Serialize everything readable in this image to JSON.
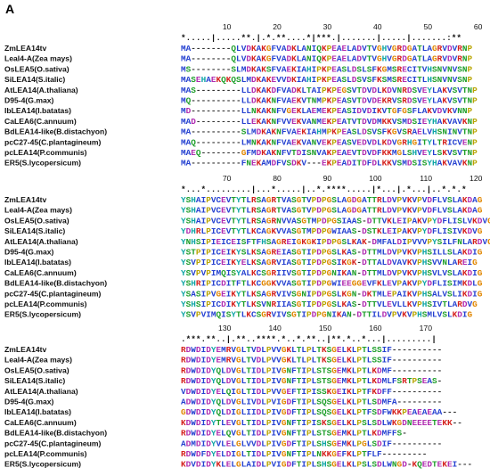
{
  "panel_label": "A",
  "blocks": [
    {
      "ruler": [
        10,
        20,
        30,
        40,
        50,
        60
      ],
      "conservation": "*.....|.....**.|.*.**....*|***.|.......|.....|.......:**",
      "rows": [
        {
          "name": "ZmLEA14tv",
          "seq": "MA--------QLVDKAKGFVADKLANIQKPEAELADVTVGHVGRDGATLAGRVDVRNP"
        },
        {
          "name": "Leal4-A(Zea mays)",
          "seq": "MA--------QLVDKAKGFVADKLANIQKPEAELADVTVGHVGRDGATLAGRVDVRNP"
        },
        {
          "name": "OsLEA5(O.sativa)",
          "seq": "MS--------SLMDKAKSFVAEKIAHIPKPEASLDSLSFKGMSRECITVHSNVNVSNP"
        },
        {
          "name": "SiLEA14(S.italic)",
          "seq": "MASEHAEKQKQSLMDKAKEVVDKIAHIPKPEASLDSVSFKSMSRECITLHSNVNVSNP"
        },
        {
          "name": "AtLEA14(A.thaliana)",
          "seq": "MAS---------LLDKAKDFVADKLTAIPKPEGSVTDVDLKDVNRDSVEYLAKVSVTNP"
        },
        {
          "name": "D95-4(G.max)",
          "seq": "MQ----------LLDKAKNFVAEKVTNMPKPEASVTDVDEKRVSRDSVEYLAKVSVTNP"
        },
        {
          "name": "IbLEA14(I.batatas)",
          "seq": "MD----------LLNKAKNFVGEKLAEMEKPEASIDVDIKVTGFGSFLAKVDVKVNNP"
        },
        {
          "name": "CaLEA6(C.annuum)",
          "seq": "MAD---------LLEKAKNFVVEKVANMEKPEATVTDVDMKKVSMDSIEYHAKVAVKNP"
        },
        {
          "name": "BdLEA14-like(B.distachyon)",
          "seq": "MA----------SLMDKAKNFVAEKIAHMPKPEASLDSVSFKGVSRAELVHSNINVTNP"
        },
        {
          "name": "pcC27-45(C.plantagineum)",
          "seq": "MAQ---------LMNKAKNFVAEKVANVEKPEASVEDVDLKDVGRHGITYLTRICVENP"
        },
        {
          "name": "pcLEA14(P.communis)",
          "seq": "MAEQ--------GFMDKAKNFVTDISNVAKPEAEVTDVDFKKMGLSHVEYLSKVSVTNP"
        },
        {
          "name": "ER5(S.lycopersicum)",
          "seq": "MA----------FNEKAMDFVSDKV---EKPEADITDFDLKKVSMDSISYHAKVAVKNP"
        }
      ]
    },
    {
      "ruler": [
        70,
        80,
        90,
        100,
        110,
        120
      ],
      "conservation": "*...*.........|...*.....|..*.****.....|*...|.*...|..*.*.*",
      "rows": [
        {
          "name": "ZmLEA14tv",
          "seq": "YSHAIPVCEVTYTLRSAGRTVASGTVPDPGSLAGDGATTRLDVPVKVPVDFLVSLAKDAG"
        },
        {
          "name": "Leal4-A(Zea mays)",
          "seq": "YSHAIPVCEVTYTLRSAGRTVASGTVPDPGSLAGDGATTRLDVPVKVPVDFLVSLAKDAG"
        },
        {
          "name": "OsLEA5(O.sativa)",
          "seq": "YSHAIPVCEVTYTLRSAGRNVVASGTMPDPGSIAAS-DTTVKLEIPAKVPYDFLISLVKDVG"
        },
        {
          "name": "SiLEA14(S.italic)",
          "seq": "YDHRLPICEVTYTLKCAGKVVASGTMPDPGWIAAS-DSTKLEIPAKVPYDFLISIVKDVG"
        },
        {
          "name": "AtLEA14(A.thaliana)",
          "seq": "YNHSIPIEICEISFTFHSAGREIGKGKIPDPGSLKAK-DMFALDIPVVVPYSILFNLARDVG"
        },
        {
          "name": "D95-4(G.max)",
          "seq": "YSTPIPICEIKYSLKSAGREIASGTIPDPGSLKAS-DTTMLDVPVKVPHSILLSLAKDIG"
        },
        {
          "name": "IbLEA14(I.batatas)",
          "seq": "YSVPIPICEIKYELKSAGRVIASGTIPDPGSIKGK-DTTALDVAVKVPHSVVNLAREIG"
        },
        {
          "name": "CaLEA6(C.annuum)",
          "seq": "YSVPVPIMQISYALKCSGRIIVSGTIPDPGNIKAN-DTTMLDVPVKVPHSVLVSLAKDIG"
        },
        {
          "name": "BdLEA14-like(B.distachyon)",
          "seq": "YSHRIPICDITFTLKCGGKVVASGTIPDPGWIEEGGEVFKLEVPAKVPYDFLISIMKDLG"
        },
        {
          "name": "pcC27-45(C.plantagineum)",
          "seq": "YSASIPVGEIKYTLKSAGRVIVSGNIPDPGSLKGN-DKTMLEPAIKVPHSALVSLIKDIG"
        },
        {
          "name": "pcLEA14(P.communis)",
          "seq": "YSHSIPICDIKYTLKSVNRIIASGTIPDPGSLKAS-DTTVLEVLLKVPHSIVTLARDVG"
        },
        {
          "name": "ER5(S.lycopersicum)",
          "seq": "YSVPVIMQISYTLKCSGRVIVSGTIPDPGNIKAN-DTTILDVPVKVPHSMLVSLKDIG"
        }
      ]
    },
    {
      "ruler": [
        130,
        140,
        150,
        160,
        170
      ],
      "conservation": ".***.**..|.**..****.*..*.**..|**.*..*...|.........|",
      "rows": [
        {
          "name": "ZmLEA14tv",
          "seq": "RDWDIDYEMRVGLTVDLPVVGKLTLPLTKSGELKLPTLSSIF----------"
        },
        {
          "name": "Leal4-A(Zea mays)",
          "seq": "RDWDIDYEMRVGLTVDLPVVGKLTLPLTKSGELKLPTLSSIF----------"
        },
        {
          "name": "OsLEA5(O.sativa)",
          "seq": "RDWDIDYQLDVGLTIDLPIVGNFTIPLSTSGEMKLPTLKDMF----------"
        },
        {
          "name": "SiLEA14(S.italic)",
          "seq": "RDWDIDYQLDVGLTIDLPIVGNFTIPLSTSGEMKLPTLKDMLFSRTPSEAS-"
        },
        {
          "name": "AtLEA14(A.thaliana)",
          "seq": "VDWDIDYELQIGLTIDLPVVGEFTIPISSKGEIKLPTFKDFF----------"
        },
        {
          "name": "D95-4(G.max)",
          "seq": "ADWDIDYQLDVGLIVDLPVIGDFTIPLSQSGELKLPTLSDMFA---------"
        },
        {
          "name": "IbLEA14(I.batatas)",
          "seq": "GDWDIDYQLDIGLIIDLPIVGDFTIPLSQSGELKLPTFSDFWKKPEAEAEAA---"
        },
        {
          "name": "CaLEA6(C.annuum)",
          "seq": "KDWDIDYTLEVGLTIDLPIVGNFTIPISKSGELKLPSLSDLWKGDNEEEETEKK--"
        },
        {
          "name": "BdLEA14-like(B.distachyon)",
          "seq": "RDWDIDYELQVGLTIDLPIVGNFTIPLSTSGEMKLPTLKDMFFS-"
        },
        {
          "name": "pcC27-45(C.plantagineum)",
          "seq": "ADMDIDYVLELGLVVDLPIVGDFTIPLSHSGEMKLPGLSDIF----------"
        },
        {
          "name": "pcLEA14(P.communis)",
          "seq": "RDWDFDYELDIGLTIDLPIVGNFTIPLNKKGEFKLPTFLF---------"
        },
        {
          "name": "ER5(S.lycopersicum)",
          "seq": "KDVDIDYKLELGLAIDLPVIGDFTIPLSHSGELKLPSLSDLWNGD-KQEDTEKEI---"
        }
      ]
    }
  ]
}
